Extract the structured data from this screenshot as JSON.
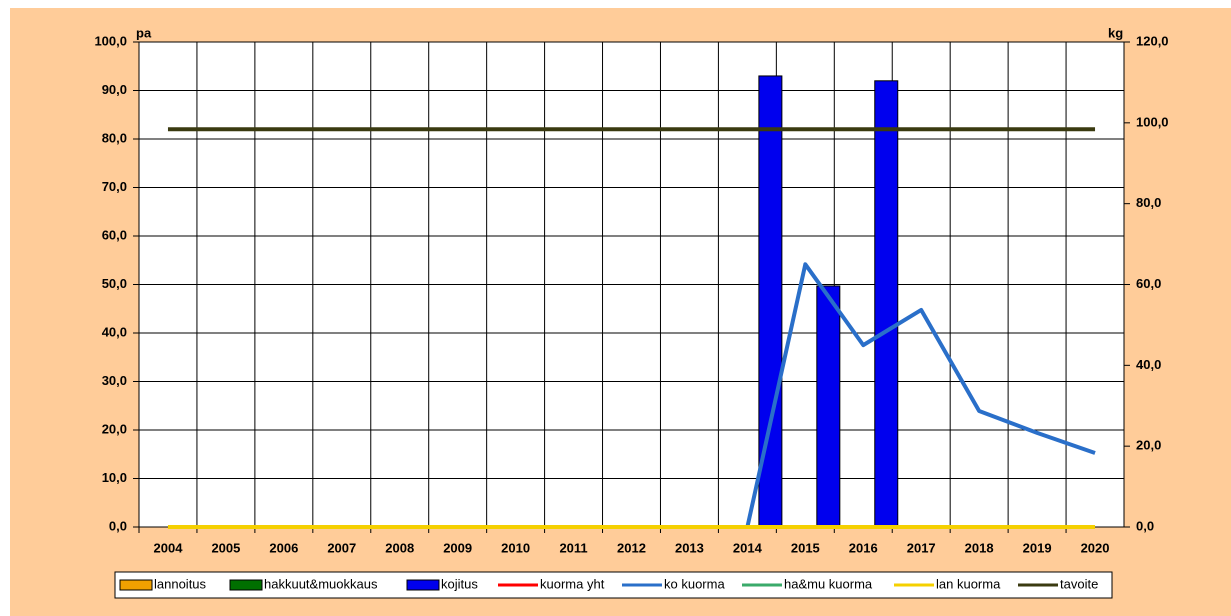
{
  "chart_data": {
    "type": "bar",
    "ylabel": "pa",
    "y2label": "kg",
    "categories": [
      "2004",
      "2005",
      "2006",
      "2007",
      "2008",
      "2009",
      "2010",
      "2011",
      "2012",
      "2013",
      "2014",
      "2015",
      "2016",
      "2017",
      "2018",
      "2019",
      "2020"
    ],
    "ylim": [
      0,
      100
    ],
    "yticks": [
      {
        "value": 0,
        "label": "0,0"
      },
      {
        "value": 10,
        "label": "10,0"
      },
      {
        "value": 20,
        "label": "20,0"
      },
      {
        "value": 30,
        "label": "30,0"
      },
      {
        "value": 40,
        "label": "40,0"
      },
      {
        "value": 50,
        "label": "50,0"
      },
      {
        "value": 60,
        "label": "60,0"
      },
      {
        "value": 70,
        "label": "70,0"
      },
      {
        "value": 80,
        "label": "80,0"
      },
      {
        "value": 90,
        "label": "90,0"
      },
      {
        "value": 100,
        "label": "100,0"
      }
    ],
    "y2lim": [
      0,
      120
    ],
    "y2ticks": [
      {
        "value": 0,
        "label": "0,0"
      },
      {
        "value": 20,
        "label": "20,0"
      },
      {
        "value": 40,
        "label": "40,0"
      },
      {
        "value": 60,
        "label": "60,0"
      },
      {
        "value": 80,
        "label": "80,0"
      },
      {
        "value": 100,
        "label": "100,0"
      },
      {
        "value": 120,
        "label": "120,0"
      }
    ],
    "grid": true,
    "legend": "bottom",
    "series": [
      {
        "name": "lannoitus",
        "type": "bar",
        "color": "#f0a000",
        "values": [
          null,
          null,
          null,
          null,
          null,
          null,
          null,
          null,
          null,
          null,
          null,
          null,
          null,
          null,
          null,
          null,
          null
        ]
      },
      {
        "name": "hakkuut&muokkaus",
        "type": "bar",
        "color": "#007000",
        "values": [
          null,
          null,
          null,
          null,
          null,
          null,
          null,
          null,
          null,
          null,
          null,
          null,
          null,
          null,
          null,
          null,
          null
        ]
      },
      {
        "name": "kojitus",
        "type": "bar",
        "color": "#0000ee",
        "values": [
          null,
          null,
          null,
          null,
          null,
          null,
          null,
          null,
          null,
          null,
          93,
          49.7,
          92,
          null,
          null,
          null,
          null
        ]
      },
      {
        "name": "kuorma yht",
        "type": "line",
        "color": "#ff0000",
        "axis": "y2",
        "values": [
          null,
          null,
          null,
          null,
          null,
          null,
          null,
          null,
          null,
          null,
          null,
          null,
          null,
          null,
          null,
          null,
          null
        ]
      },
      {
        "name": "ko kuorma",
        "type": "line",
        "color": "#2a6fc9",
        "axis": "y2",
        "values": [
          null,
          null,
          null,
          null,
          null,
          null,
          null,
          null,
          null,
          null,
          0,
          65,
          45,
          53.7,
          28.7,
          23.3,
          18.3
        ]
      },
      {
        "name": "ha&mu kuorma",
        "type": "line",
        "color": "#3aaa6a",
        "axis": "y2",
        "values": [
          null,
          null,
          null,
          null,
          null,
          null,
          null,
          null,
          null,
          null,
          null,
          null,
          null,
          null,
          null,
          null,
          null
        ]
      },
      {
        "name": "lan kuorma",
        "type": "line",
        "color": "#f5d000",
        "axis": "y2",
        "values": [
          0,
          0,
          0,
          0,
          0,
          0,
          0,
          0,
          0,
          0,
          0,
          0,
          0,
          0,
          0,
          0,
          0
        ]
      },
      {
        "name": "tavoite",
        "type": "line",
        "color": "#3a3a10",
        "values": [
          82,
          82,
          82,
          82,
          82,
          82,
          82,
          82,
          82,
          82,
          82,
          82,
          82,
          82,
          82,
          82,
          82
        ]
      }
    ]
  }
}
